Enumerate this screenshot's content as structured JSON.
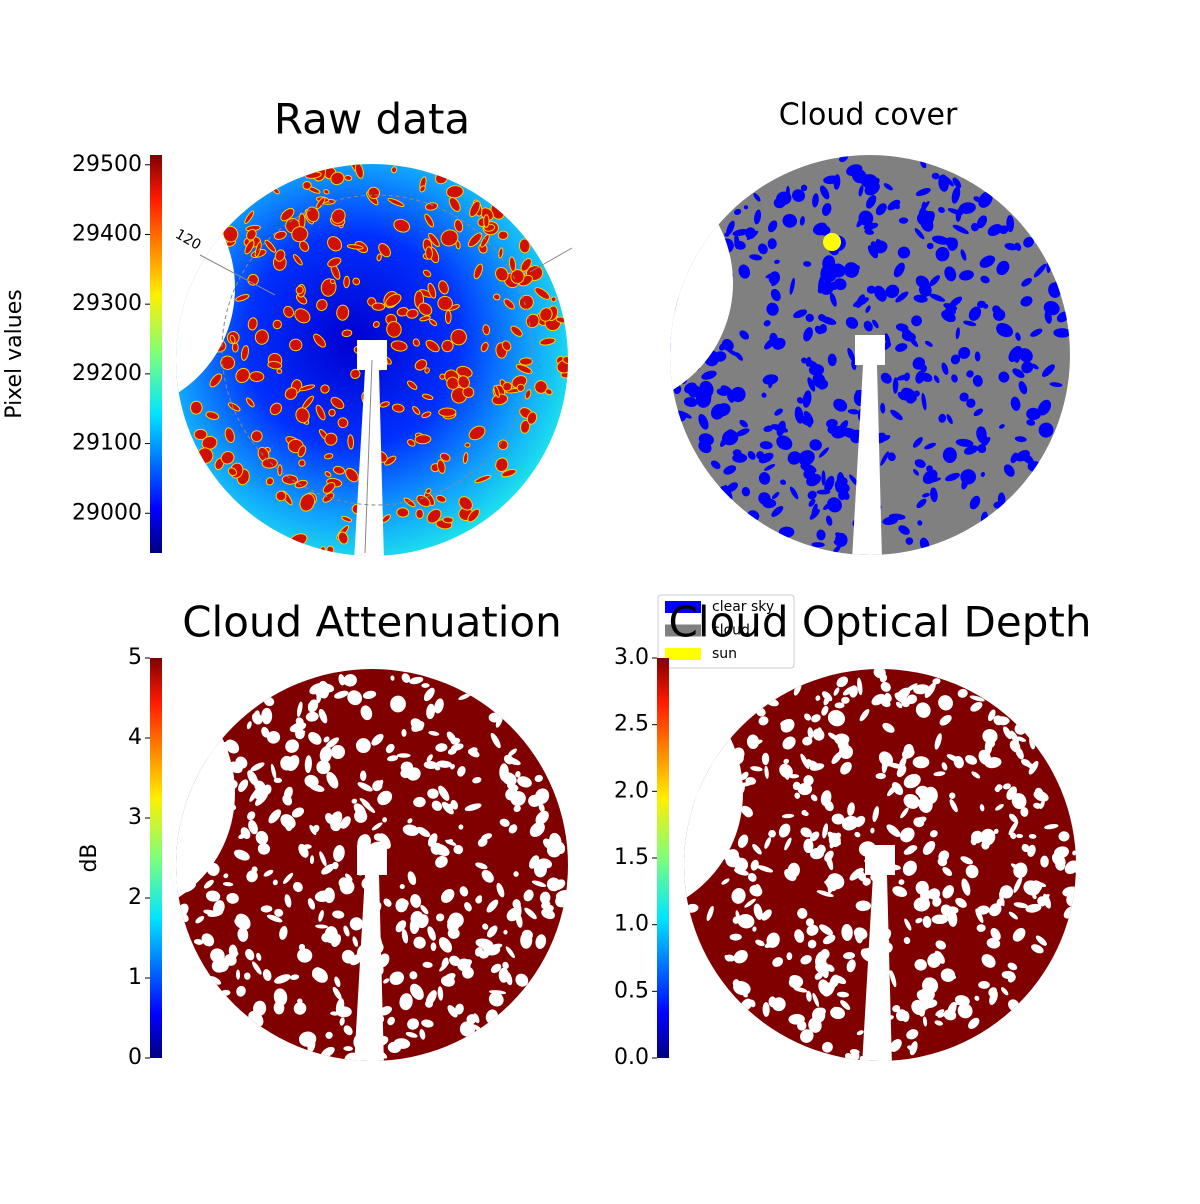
{
  "chart_data": [
    {
      "type": "image",
      "title": "Raw data",
      "annotations": [
        "120"
      ],
      "colorbar": {
        "label": "Pixel values",
        "cmap": "jet",
        "ylim": [
          28943,
          29514
        ],
        "yticks": [
          29000,
          29100,
          29200,
          29300,
          29400,
          29500
        ]
      }
    },
    {
      "type": "image",
      "title": "Cloud cover",
      "legend": [
        {
          "name": "clear sky",
          "color": "#0000ff"
        },
        {
          "name": "cloud",
          "color": "#808080"
        },
        {
          "name": "sun",
          "color": "#ffff00"
        }
      ]
    },
    {
      "type": "image",
      "title": "Cloud Attenuation",
      "colorbar": {
        "label": "dB",
        "cmap": "jet",
        "ylim": [
          0,
          5
        ],
        "yticks": [
          0,
          1,
          2,
          3,
          4,
          5
        ]
      }
    },
    {
      "type": "image",
      "title": "Cloud Optical Depth",
      "colorbar": {
        "cmap": "jet",
        "ylim": [
          0,
          3
        ],
        "yticks": [
          {
            "value": 0,
            "label": "0.0"
          },
          0.5,
          {
            "value": 1,
            "label": "1.0"
          },
          1.5,
          {
            "value": 2,
            "label": "2.0"
          },
          2.5,
          {
            "value": 3,
            "label": "3.0"
          }
        ]
      }
    }
  ]
}
